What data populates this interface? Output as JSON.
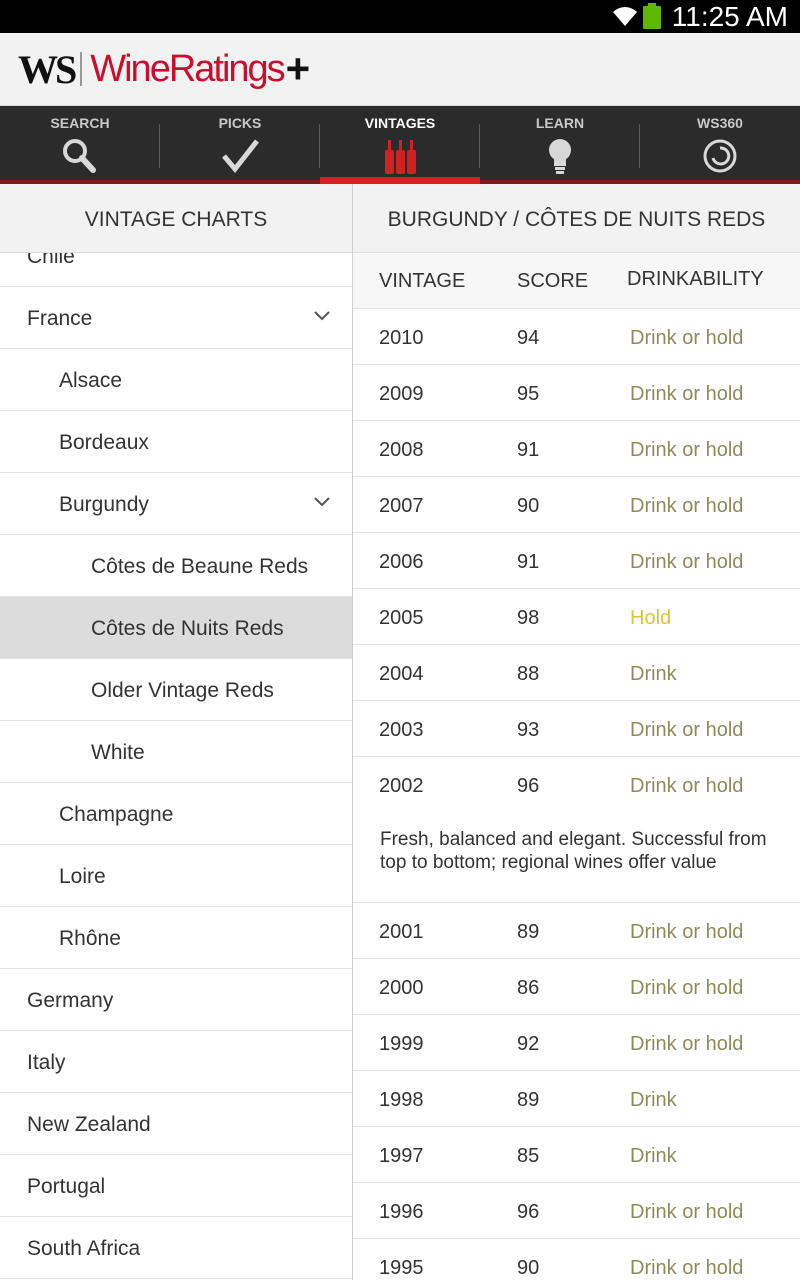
{
  "status": {
    "time": "11:25 AM"
  },
  "header": {
    "logo_ws": "WS",
    "logo_brand": "WineRatings",
    "logo_plus": "+"
  },
  "nav": {
    "tabs": [
      {
        "label": "SEARCH",
        "icon": "search-icon"
      },
      {
        "label": "PICKS",
        "icon": "checkmark-icon"
      },
      {
        "label": "VINTAGES",
        "icon": "wine-bottles-icon",
        "active": true
      },
      {
        "label": "LEARN",
        "icon": "lightbulb-icon"
      },
      {
        "label": "WS360",
        "icon": "ws360-icon"
      }
    ]
  },
  "left": {
    "title": "VINTAGE CHARTS",
    "items": [
      {
        "label": "Chile"
      },
      {
        "label": "France"
      },
      {
        "label": "Alsace"
      },
      {
        "label": "Bordeaux"
      },
      {
        "label": "Burgundy"
      },
      {
        "label": "Côtes de Beaune Reds"
      },
      {
        "label": "Côtes de Nuits Reds"
      },
      {
        "label": "Older Vintage Reds"
      },
      {
        "label": "White"
      },
      {
        "label": "Champagne"
      },
      {
        "label": "Loire"
      },
      {
        "label": "Rhône"
      },
      {
        "label": "Germany"
      },
      {
        "label": "Italy"
      },
      {
        "label": "New Zealand"
      },
      {
        "label": "Portugal"
      },
      {
        "label": "South Africa"
      }
    ]
  },
  "right": {
    "title": "BURGUNDY / CÔTES DE NUITS REDS",
    "columns": {
      "vintage": "VINTAGE",
      "score": "SCORE",
      "drink": "DRINKABILITY"
    },
    "rows": [
      {
        "vintage": "2010",
        "score": "94",
        "drink": "Drink or hold"
      },
      {
        "vintage": "2009",
        "score": "95",
        "drink": "Drink or hold"
      },
      {
        "vintage": "2008",
        "score": "91",
        "drink": "Drink or hold"
      },
      {
        "vintage": "2007",
        "score": "90",
        "drink": "Drink or hold"
      },
      {
        "vintage": "2006",
        "score": "91",
        "drink": "Drink or hold"
      },
      {
        "vintage": "2005",
        "score": "98",
        "drink": "Hold"
      },
      {
        "vintage": "2004",
        "score": "88",
        "drink": "Drink"
      },
      {
        "vintage": "2003",
        "score": "93",
        "drink": "Drink or hold"
      },
      {
        "vintage": "2002",
        "score": "96",
        "drink": "Drink or hold",
        "note": "Fresh, balanced and elegant. Successful from top to bottom; regional wines offer value"
      },
      {
        "vintage": "2001",
        "score": "89",
        "drink": "Drink or hold"
      },
      {
        "vintage": "2000",
        "score": "86",
        "drink": "Drink or hold"
      },
      {
        "vintage": "1999",
        "score": "92",
        "drink": "Drink or hold"
      },
      {
        "vintage": "1998",
        "score": "89",
        "drink": "Drink"
      },
      {
        "vintage": "1997",
        "score": "85",
        "drink": "Drink"
      },
      {
        "vintage": "1996",
        "score": "96",
        "drink": "Drink or hold"
      },
      {
        "vintage": "1995",
        "score": "90",
        "drink": "Drink or hold"
      }
    ]
  },
  "colors": {
    "brand_red": "#c8102e",
    "drink_text": "#8c8c5a",
    "hold_text": "#e0c23a",
    "nav_bg": "#2b2b2b"
  }
}
